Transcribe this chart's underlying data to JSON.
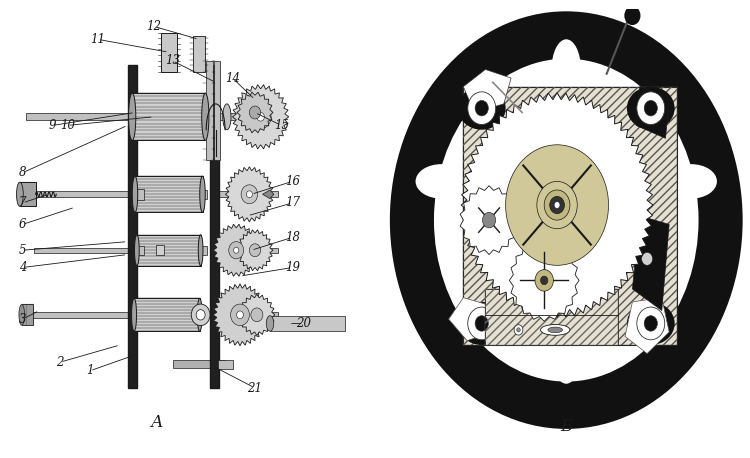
{
  "label_A": "А",
  "label_B": "Б",
  "fig_width": 7.5,
  "fig_height": 4.58,
  "dpi": 100,
  "bg_color": "#ffffff",
  "line_color": "#1a1a1a",
  "gray_light": "#d8d8d8",
  "gray_med": "#b0b0b0",
  "gray_dark": "#707070",
  "black": "#111111"
}
